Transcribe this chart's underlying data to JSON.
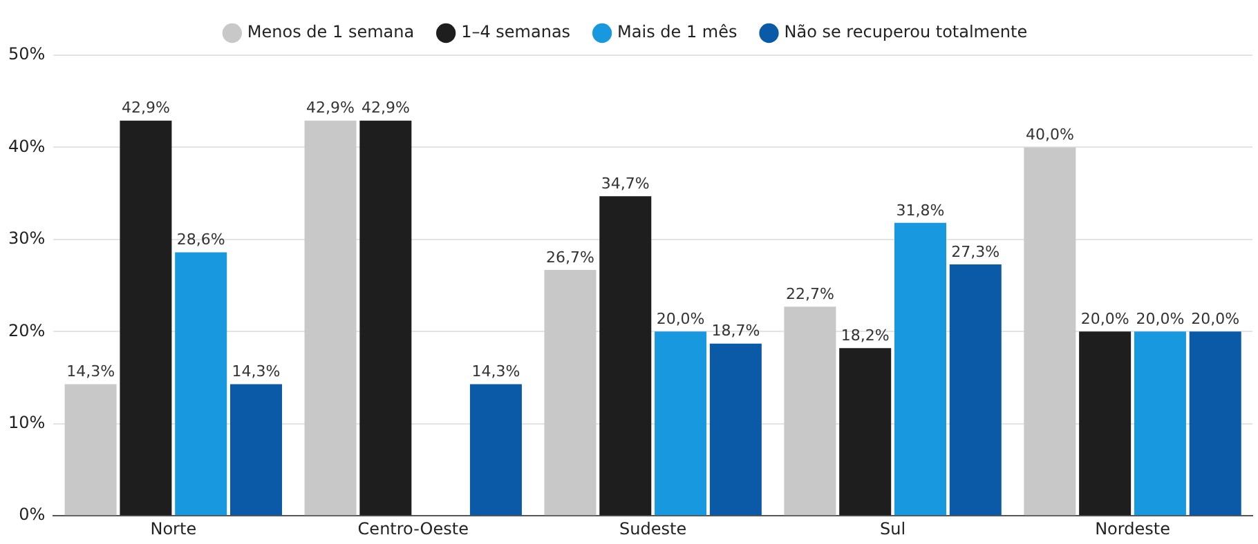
{
  "chart_data": {
    "type": "bar",
    "categories": [
      "Norte",
      "Centro-Oeste",
      "Sudeste",
      "Sul",
      "Nordeste"
    ],
    "series": [
      {
        "name": "Menos de 1 semana",
        "color": "#c8c8c8",
        "values": [
          14.3,
          42.9,
          26.7,
          22.7,
          40.0
        ],
        "value_labels": [
          "14,3%",
          "42,9%",
          "26,7%",
          "22,7%",
          "40,0%"
        ]
      },
      {
        "name": "1–4 semanas",
        "color": "#1e1e1e",
        "values": [
          42.9,
          42.9,
          34.7,
          18.2,
          20.0
        ],
        "value_labels": [
          "42,9%",
          "42,9%",
          "34,7%",
          "18,2%",
          "20,0%"
        ]
      },
      {
        "name": "Mais de 1 mês",
        "color": "#1899df",
        "values": [
          28.6,
          null,
          20.0,
          31.8,
          20.0
        ],
        "value_labels": [
          "28,6%",
          null,
          "20,0%",
          "31,8%",
          "20,0%"
        ]
      },
      {
        "name": "Não se recuperou totalmente",
        "color": "#0a5aa8",
        "values": [
          14.3,
          14.3,
          18.7,
          27.3,
          20.0
        ],
        "value_labels": [
          "14,3%",
          "14,3%",
          "18,7%",
          "27,3%",
          "20,0%"
        ]
      }
    ],
    "ylim": [
      0,
      50
    ],
    "yticks": [
      {
        "value": 0,
        "label": "0%"
      },
      {
        "value": 10,
        "label": "10%"
      },
      {
        "value": 20,
        "label": "20%"
      },
      {
        "value": 30,
        "label": "30%"
      },
      {
        "value": 40,
        "label": "40%"
      },
      {
        "value": 50,
        "label": "50%"
      }
    ],
    "grid": "y",
    "legend": "top"
  }
}
